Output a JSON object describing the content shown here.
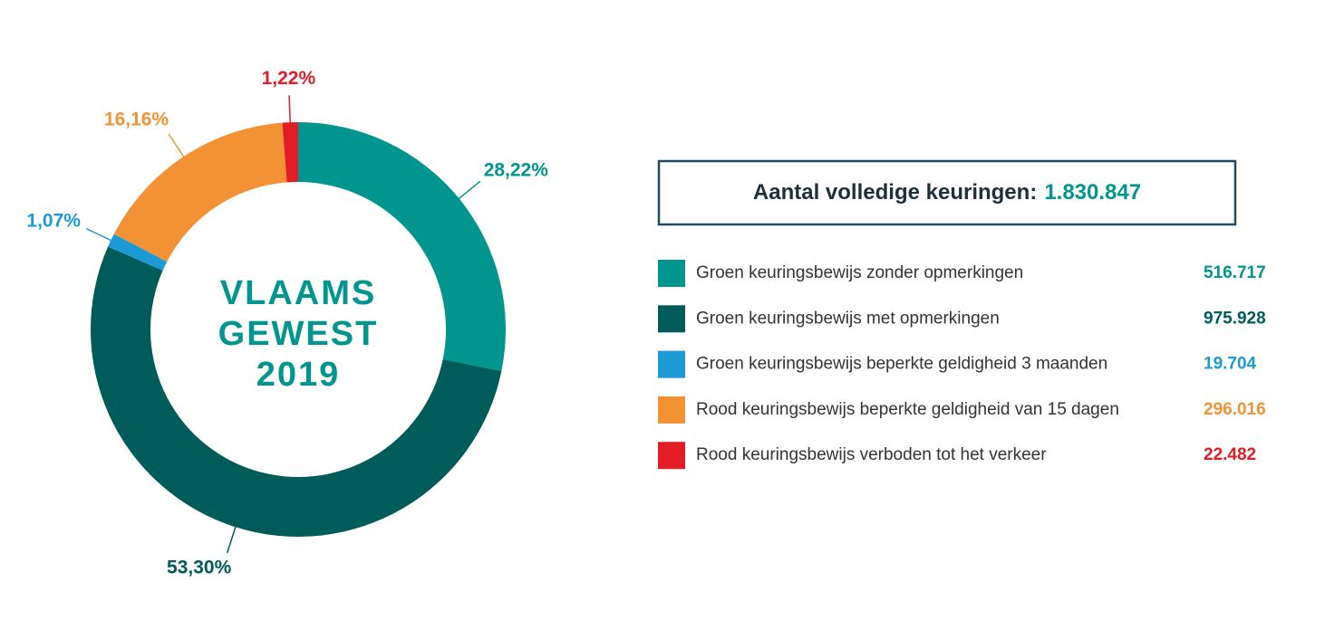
{
  "chart_data": {
    "type": "pie",
    "center_text": [
      "VLAAMS",
      "GEWEST",
      "2019"
    ],
    "total_title": "Aantal volledige keuringen:",
    "total": {
      "value": 1830847,
      "label": "1.830.847"
    },
    "categories": [
      "Groen keuringsbewijs zonder opmerkingen",
      "Groen keuringsbewijs met opmerkingen",
      "Groen keuringsbewijs beperkte geldigheid 3 maanden",
      "Rood keuringsbewijs beperkte geldigheid van 15 dagen",
      "Rood keuringsbewijs verboden tot het verkeer"
    ],
    "values": [
      28.22,
      53.3,
      1.07,
      16.16,
      1.22
    ],
    "value_labels": [
      "28,22%",
      "53,30%",
      "1,07%",
      "16,16%",
      "1,22%"
    ],
    "counts": [
      {
        "value": 516717,
        "label": "516.717"
      },
      {
        "value": 975928,
        "label": "975.928"
      },
      {
        "value": 19704,
        "label": "19.704"
      },
      {
        "value": 296016,
        "label": "296.016"
      },
      {
        "value": 22482,
        "label": "22.482"
      }
    ],
    "colors": [
      "#00958f",
      "#005b5b",
      "#1b9ad6",
      "#f39234",
      "#e31d25"
    ]
  }
}
